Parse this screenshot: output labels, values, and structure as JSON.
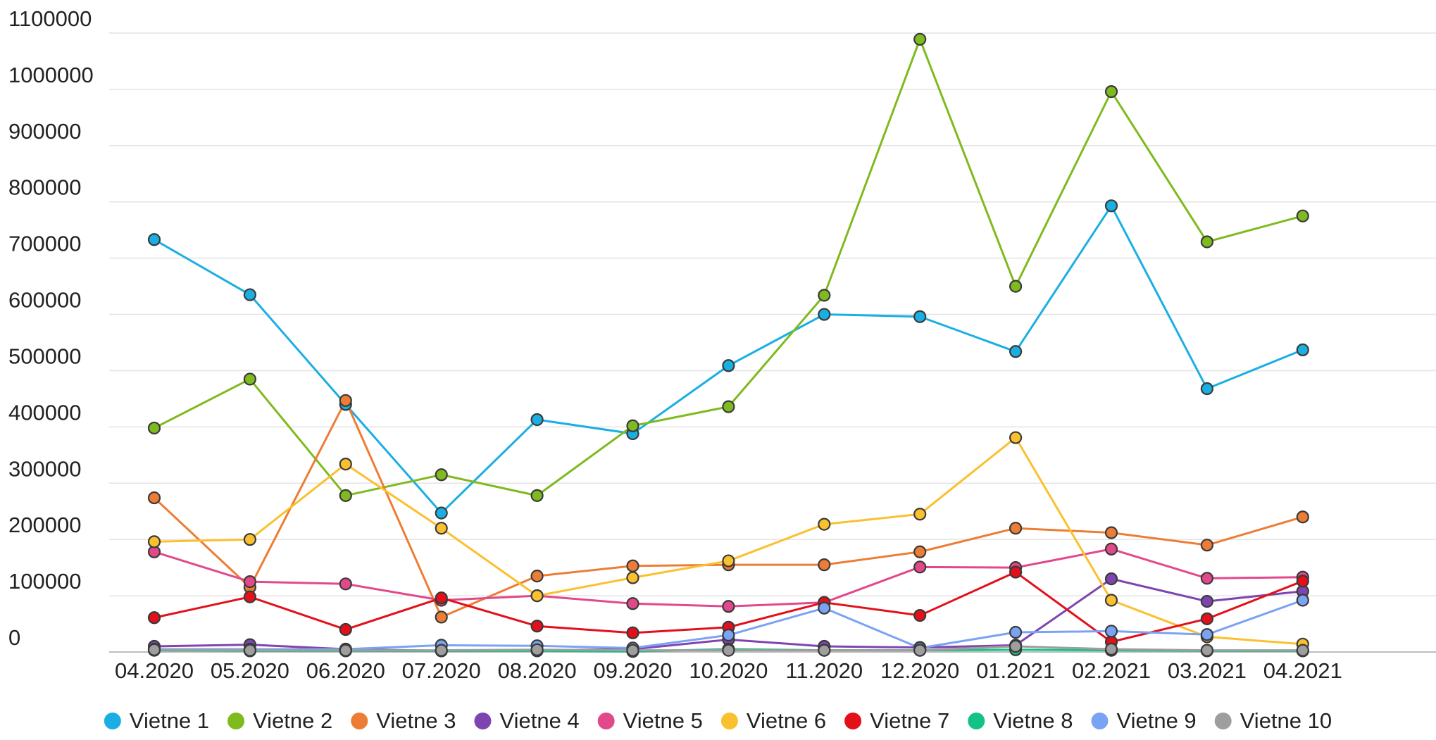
{
  "chart_data": {
    "type": "line",
    "title": "",
    "xlabel": "",
    "ylabel": "",
    "categories": [
      "04.2020",
      "05.2020",
      "06.2020",
      "07.2020",
      "08.2020",
      "09.2020",
      "10.2020",
      "11.2020",
      "12.2020",
      "01.2021",
      "02.2021",
      "03.2021",
      "04.2021"
    ],
    "yticks": [
      0,
      100000,
      200000,
      300000,
      400000,
      500000,
      600000,
      700000,
      800000,
      900000,
      1000000,
      1100000
    ],
    "ylim": [
      0,
      1100000
    ],
    "grid": true,
    "legend_position": "bottom",
    "series": [
      {
        "name": "Vietne 1",
        "color": "#1aafe3",
        "values": [
          733000,
          635000,
          440000,
          247000,
          413000,
          388000,
          509000,
          600000,
          596000,
          534000,
          793000,
          468000,
          537000
        ]
      },
      {
        "name": "Vietne 2",
        "color": "#7fba1e",
        "values": [
          398000,
          485000,
          278000,
          315000,
          278000,
          402000,
          436000,
          634000,
          1089000,
          650000,
          996000,
          729000,
          775000
        ]
      },
      {
        "name": "Vietne 3",
        "color": "#ed7d35",
        "values": [
          274000,
          115000,
          447000,
          62000,
          135000,
          153000,
          155000,
          155000,
          178000,
          220000,
          212000,
          190000,
          240000
        ]
      },
      {
        "name": "Vietne 4",
        "color": "#7e45b0",
        "values": [
          10000,
          13000,
          5000,
          2000,
          3000,
          5000,
          22000,
          10000,
          8000,
          12000,
          130000,
          90000,
          108000
        ]
      },
      {
        "name": "Vietne 5",
        "color": "#e2498a",
        "values": [
          178000,
          125000,
          121000,
          92000,
          100000,
          86000,
          81000,
          88000,
          151000,
          150000,
          183000,
          131000,
          133000
        ]
      },
      {
        "name": "Vietne 6",
        "color": "#fbc02d",
        "values": [
          196000,
          200000,
          334000,
          220000,
          100000,
          132000,
          162000,
          227000,
          245000,
          381000,
          92000,
          27000,
          14000
        ]
      },
      {
        "name": "Vietne 7",
        "color": "#e3101a",
        "values": [
          61000,
          98000,
          40000,
          96000,
          46000,
          34000,
          44000,
          88000,
          65000,
          142000,
          18000,
          59000,
          126000
        ]
      },
      {
        "name": "Vietne 8",
        "color": "#14c283",
        "values": [
          3000,
          2000,
          2000,
          2000,
          2000,
          1000,
          5000,
          3000,
          3000,
          4000,
          3000,
          2000,
          2000
        ]
      },
      {
        "name": "Vietne 9",
        "color": "#7aa3f4",
        "values": [
          5000,
          5000,
          5000,
          12000,
          11000,
          7000,
          30000,
          78000,
          7000,
          35000,
          37000,
          31000,
          92000
        ]
      },
      {
        "name": "Vietne 10",
        "color": "#9e9e9e",
        "values": [
          4000,
          3000,
          3000,
          3000,
          4000,
          3000,
          3000,
          3000,
          3000,
          10000,
          5000,
          3000,
          3000
        ]
      }
    ]
  }
}
